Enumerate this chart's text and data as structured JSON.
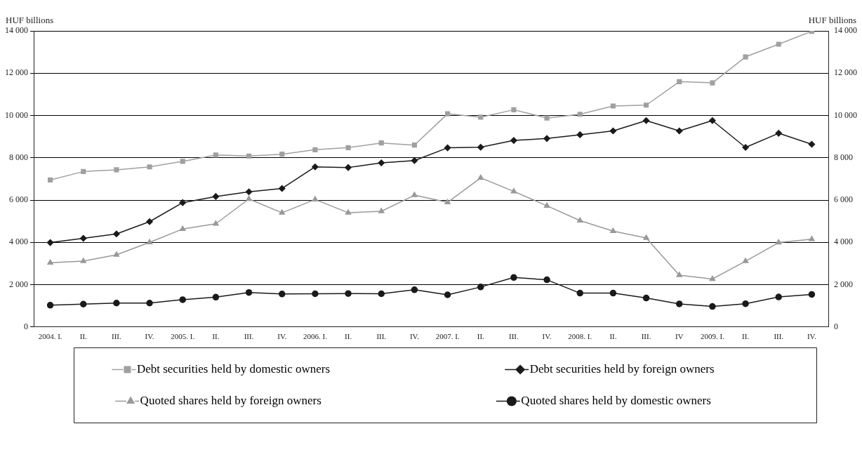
{
  "chart_data": {
    "type": "line",
    "ylabel": "HUF billions",
    "y2label": "HUF billions",
    "categories": [
      "2004. I.",
      "II.",
      "III.",
      "IV.",
      "2005. I.",
      "II.",
      "III.",
      "IV.",
      "2006. I.",
      "II.",
      "III.",
      "IV.",
      "2007. I.",
      "II.",
      "III.",
      "IV.",
      "2008. I.",
      "II.",
      "III.",
      "IV",
      "2009. I.",
      "II.",
      "III.",
      "IV."
    ],
    "series": [
      {
        "name": "Debt securities held by domestic owners",
        "color": "#a0a0a0",
        "marker": "square",
        "values": [
          6950,
          7350,
          7430,
          7570,
          7830,
          8130,
          8080,
          8170,
          8380,
          8480,
          8700,
          8600,
          10080,
          9920,
          10270,
          9880,
          10060,
          10450,
          10490,
          11600,
          11540,
          12770,
          13370,
          13980
        ]
      },
      {
        "name": "Debt securities held by foreign owners",
        "color": "#1a1a1a",
        "marker": "diamond",
        "values": [
          3990,
          4190,
          4400,
          4980,
          5880,
          6170,
          6390,
          6550,
          7570,
          7540,
          7760,
          7870,
          8470,
          8500,
          8820,
          8910,
          9090,
          9270,
          9760,
          9270,
          9760,
          8490,
          9160,
          8640
        ]
      },
      {
        "name": "Quoted shares held by foreign owners",
        "color": "#999999",
        "marker": "triangle",
        "values": [
          3040,
          3110,
          3410,
          4000,
          4630,
          4880,
          6050,
          5400,
          6030,
          5400,
          5470,
          6230,
          5890,
          7050,
          6410,
          5730,
          5030,
          4530,
          4210,
          2450,
          2270,
          3110,
          3990,
          4150
        ]
      },
      {
        "name": "Quoted shares held by domestic owners",
        "color": "#1a1a1a",
        "marker": "circle",
        "values": [
          1030,
          1080,
          1130,
          1130,
          1290,
          1410,
          1630,
          1560,
          1570,
          1580,
          1570,
          1760,
          1520,
          1890,
          2340,
          2230,
          1600,
          1600,
          1370,
          1090,
          970,
          1100,
          1420,
          1540
        ]
      }
    ],
    "ylim": [
      0,
      14000
    ],
    "yticks": [
      0,
      {
        "value": 2000,
        "label": "2 000"
      },
      {
        "value": 4000,
        "label": "4 000"
      },
      {
        "value": 6000,
        "label": "6 000"
      },
      {
        "value": 8000,
        "label": "8 000"
      },
      {
        "value": 10000,
        "label": "10 000"
      },
      {
        "value": 12000,
        "label": "12 000"
      },
      {
        "value": 14000,
        "label": "14 000"
      }
    ],
    "y2lim": [
      0,
      14000
    ],
    "y2ticks": [
      0,
      {
        "value": 2000,
        "label": "2 000"
      },
      {
        "value": 4000,
        "label": "4 000"
      },
      {
        "value": 6000,
        "label": "6 000"
      },
      {
        "value": 8000,
        "label": "8 000"
      },
      {
        "value": 10000,
        "label": "10 000"
      },
      {
        "value": 12000,
        "label": "12 000"
      },
      {
        "value": 14000,
        "label": "14 000"
      }
    ],
    "grid": "y",
    "legend": "bottom",
    "line_style": "solid"
  }
}
